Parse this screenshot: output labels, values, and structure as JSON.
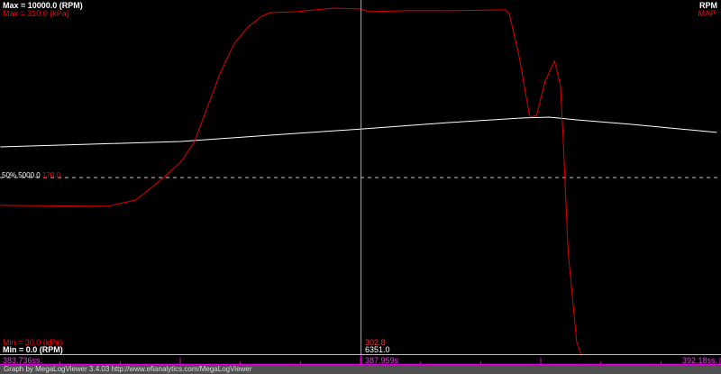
{
  "chart_data": {
    "type": "line",
    "xlabel": "",
    "xlim": [
      383.736,
      392.18
    ],
    "series": [
      {
        "name": "RPM",
        "color": "#ffffff",
        "ylim": [
          0.0,
          10000.0
        ],
        "x": [
          383.74,
          384.79,
          385.85,
          386.9,
          387.99,
          389.01,
          389.86,
          390.17,
          390.49,
          391.12,
          392.13
        ],
        "values": [
          5853,
          5930,
          6006,
          6184,
          6362,
          6541,
          6668,
          6693,
          6617,
          6490,
          6261
        ]
      },
      {
        "name": "MAP",
        "color": "#ff0000",
        "ylim": [
          30.0,
          310.0
        ],
        "x": [
          383.74,
          385.0,
          385.32,
          385.42,
          385.64,
          385.85,
          386.01,
          386.16,
          386.32,
          386.48,
          386.64,
          386.8,
          386.9,
          387.22,
          387.64,
          387.96,
          388.06,
          388.49,
          389.01,
          389.65,
          389.7,
          389.81,
          389.94,
          390.02,
          390.12,
          390.23,
          390.3,
          390.33,
          390.39,
          390.49,
          390.54
        ],
        "values": [
          147.6,
          146.9,
          151.8,
          156.8,
          168.9,
          181.8,
          197.4,
          224.5,
          253.0,
          275.8,
          288.6,
          297.2,
          300.0,
          300.8,
          303.6,
          302.9,
          300.8,
          301.5,
          301.5,
          302.2,
          299.3,
          267.3,
          217.4,
          218.8,
          245.9,
          261.6,
          242.3,
          203.1,
          110.5,
          39.3,
          30.0
        ]
      }
    ],
    "max_labels": {
      "rpm": "Max = 10000.0 (RPM)",
      "map": "Max = 310.0 (kPa)"
    },
    "min_labels": {
      "map": "Min = 30.0 (kPa)",
      "rpm": "Min = 0.0 (RPM)"
    },
    "legend": {
      "rpm": "RPM",
      "map": "MAP",
      "placement": "top-right"
    },
    "midline": {
      "pct": "50%",
      "rpm": "5000.0",
      "map": "170.0"
    },
    "cursor": {
      "time": 387.959,
      "time_label": "387.959s",
      "map": "302.8",
      "rpm": "6351.0"
    },
    "time_start_label": "383.736ss.",
    "time_end_label": "392.18ss."
  },
  "footer": "Graph by MegaLogViewer 3.4.03 http://www.efianalytics.com/MegaLogViewer"
}
